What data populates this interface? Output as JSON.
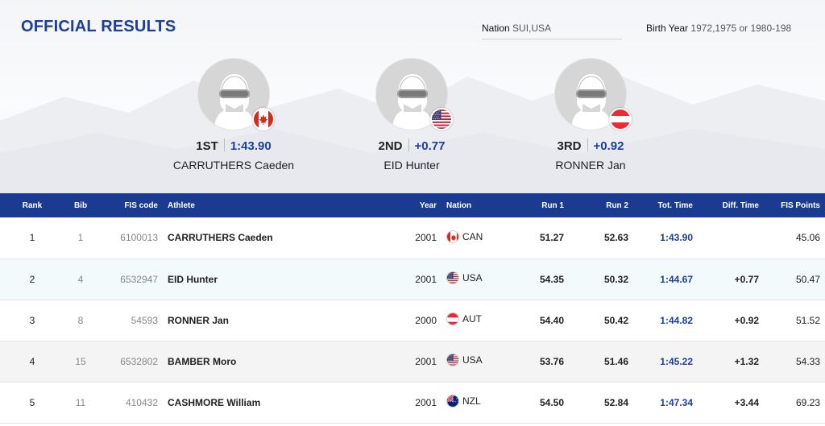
{
  "header": {
    "title": "OFFICIAL RESULTS"
  },
  "filters": {
    "nation": {
      "label": "Nation",
      "value": "SUI,USA"
    },
    "birth_year": {
      "label": "Birth Year",
      "value": "1972,1975 or 1980-198"
    }
  },
  "podium": [
    {
      "rank": "1ST",
      "time": "1:43.90",
      "name": "CARRUTHERS Caeden",
      "flag": "can"
    },
    {
      "rank": "2ND",
      "time": "+0.77",
      "name": "EID Hunter",
      "flag": "usa"
    },
    {
      "rank": "3RD",
      "time": "+0.92",
      "name": "RONNER Jan",
      "flag": "aut"
    }
  ],
  "table": {
    "headers": {
      "rank": "Rank",
      "bib": "Bib",
      "fis_code": "FIS code",
      "athlete": "Athlete",
      "year": "Year",
      "nation": "Nation",
      "run1": "Run 1",
      "run2": "Run 2",
      "tot_time": "Tot. Time",
      "diff_time": "Diff. Time",
      "fis_points": "FIS Points"
    },
    "rows": [
      {
        "rank": "1",
        "bib": "1",
        "fis_code": "6100013",
        "athlete": "CARRUTHERS Caeden",
        "year": "2001",
        "nation": "CAN",
        "flag": "can",
        "run1": "51.27",
        "run2": "52.63",
        "tot_time": "1:43.90",
        "diff_time": "",
        "fis_points": "45.06"
      },
      {
        "rank": "2",
        "bib": "4",
        "fis_code": "6532947",
        "athlete": "EID Hunter",
        "year": "2001",
        "nation": "USA",
        "flag": "usa",
        "run1": "54.35",
        "run2": "50.32",
        "tot_time": "1:44.67",
        "diff_time": "+0.77",
        "fis_points": "50.47"
      },
      {
        "rank": "3",
        "bib": "8",
        "fis_code": "54593",
        "athlete": "RONNER Jan",
        "year": "2000",
        "nation": "AUT",
        "flag": "aut",
        "run1": "54.40",
        "run2": "50.42",
        "tot_time": "1:44.82",
        "diff_time": "+0.92",
        "fis_points": "51.52"
      },
      {
        "rank": "4",
        "bib": "15",
        "fis_code": "6532802",
        "athlete": "BAMBER Moro",
        "year": "2001",
        "nation": "USA",
        "flag": "usa",
        "run1": "53.76",
        "run2": "51.46",
        "tot_time": "1:45.22",
        "diff_time": "+1.32",
        "fis_points": "54.33"
      },
      {
        "rank": "5",
        "bib": "11",
        "fis_code": "410432",
        "athlete": "CASHMORE William",
        "year": "2001",
        "nation": "NZL",
        "flag": "nzl",
        "run1": "54.50",
        "run2": "52.84",
        "tot_time": "1:47.34",
        "diff_time": "+3.44",
        "fis_points": "69.23"
      }
    ]
  },
  "colors": {
    "accent": "#1b3fa0",
    "header_bg": "#1a3b8f"
  },
  "icons": {
    "avatar": "skier-avatar-icon",
    "flags": [
      "canada-flag-icon",
      "usa-flag-icon",
      "austria-flag-icon",
      "new-zealand-flag-icon"
    ]
  }
}
